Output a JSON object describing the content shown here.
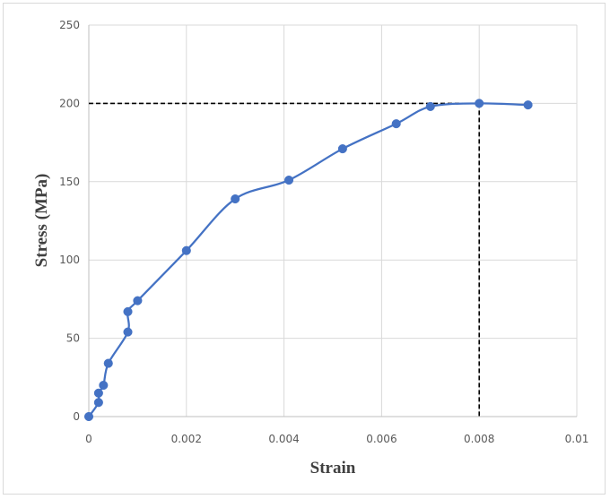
{
  "chart_data": {
    "type": "line",
    "title": "",
    "xlabel": "Strain",
    "ylabel": "Stress (MPa)",
    "xlim": [
      0,
      0.01
    ],
    "ylim": [
      0,
      250
    ],
    "x_ticks": [
      0,
      0.002,
      0.004,
      0.006,
      0.008,
      0.01
    ],
    "x_tick_labels": [
      "0",
      "0.002",
      "0.004",
      "0.006",
      "0.008",
      "0.01"
    ],
    "y_ticks": [
      0,
      50,
      100,
      150,
      200,
      250
    ],
    "y_tick_labels": [
      "0",
      "50",
      "100",
      "150",
      "200",
      "250"
    ],
    "grid": true,
    "legend": "none",
    "series": [
      {
        "color": "#4472c4",
        "marker": "circle",
        "smooth": true,
        "x": [
          0,
          0.0002,
          0.0002,
          0.0003,
          0.0004,
          0.0008,
          0.0008,
          0.001,
          0.002,
          0.003,
          0.0041,
          0.0052,
          0.0063,
          0.007,
          0.008,
          0.009
        ],
        "y": [
          0,
          9,
          15,
          20,
          34,
          54,
          67,
          74,
          106,
          139,
          151,
          171,
          187,
          198,
          200,
          199
        ]
      }
    ],
    "reference_lines": [
      {
        "style": "dashed",
        "color": "#000000",
        "from": [
          0,
          200
        ],
        "to": [
          0.008,
          200
        ]
      },
      {
        "style": "dashed",
        "color": "#000000",
        "from": [
          0.008,
          200
        ],
        "to": [
          0.008,
          0
        ]
      }
    ]
  }
}
